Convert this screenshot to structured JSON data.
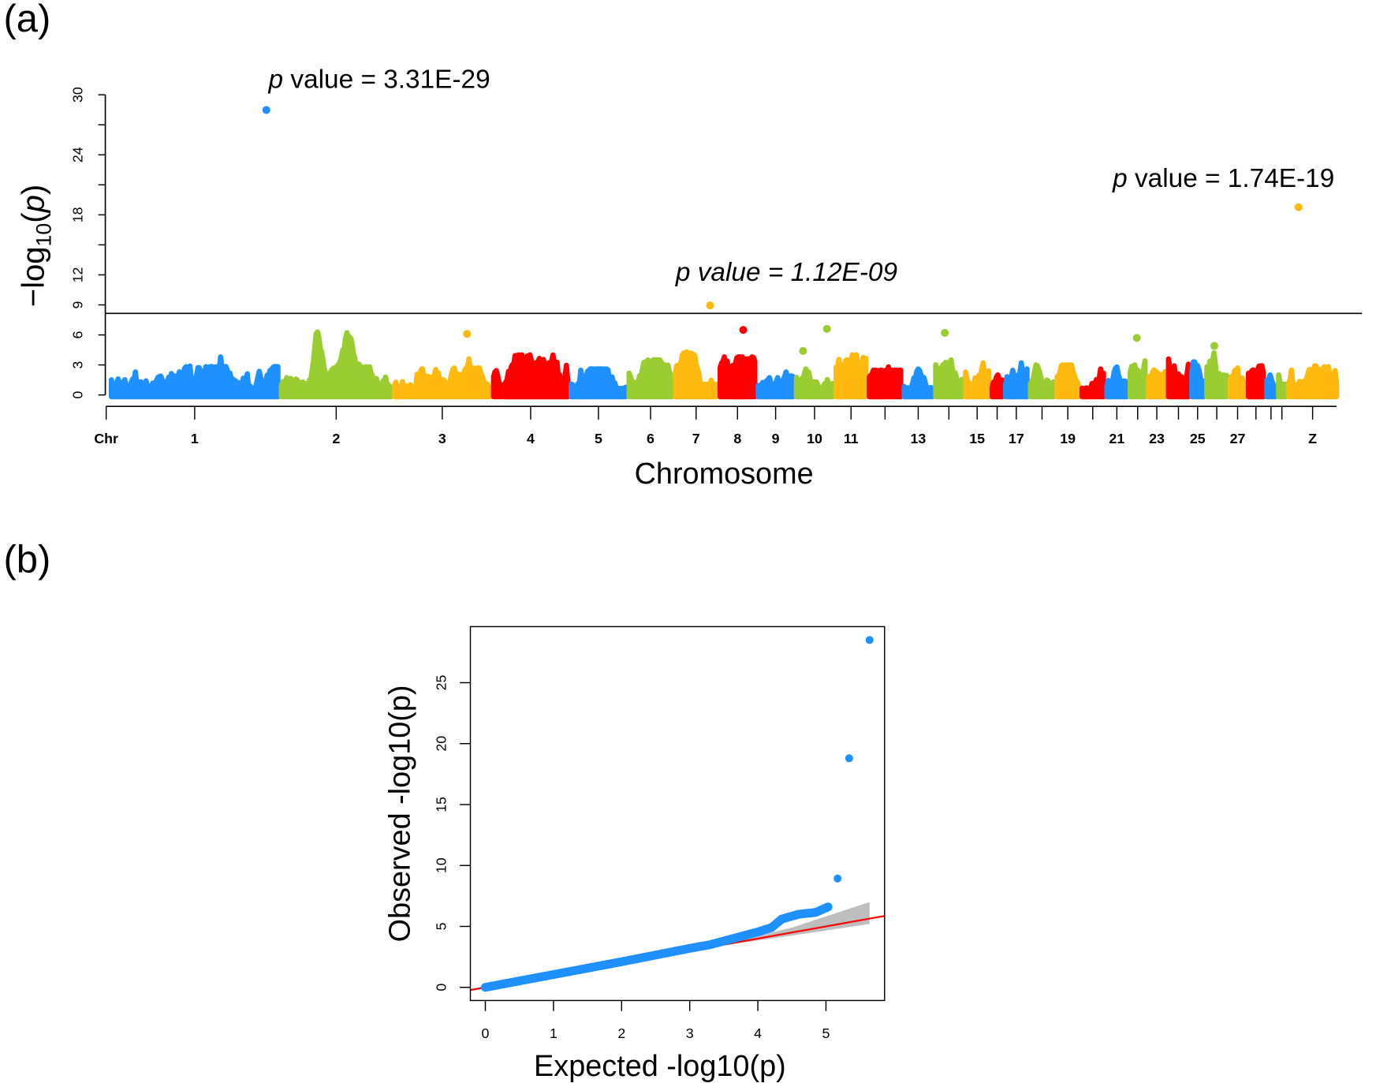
{
  "panel_labels": {
    "a": "(a)",
    "b": "(b)"
  },
  "chart_data": [
    {
      "type": "scatter",
      "subtype": "manhattan",
      "xlabel": "Chromosome",
      "ylabel_main": "−log",
      "ylabel_sub": "10",
      "ylabel_var": "p",
      "ylim": [
        0,
        30
      ],
      "yticks": [
        0,
        3,
        6,
        9,
        12,
        18,
        24,
        30
      ],
      "yticks_minor": [
        15,
        21,
        27
      ],
      "threshold": 8.15,
      "grid": false,
      "x_axis_start_label": "Chr",
      "colors": [
        "#1E90FF",
        "#9ACD32",
        "#FFB90F",
        "#FF0000"
      ],
      "chromosomes": [
        {
          "label": "1",
          "length_mb": 202,
          "peak": 3.8
        },
        {
          "label": "2",
          "length_mb": 133,
          "peak": 6.3
        },
        {
          "label": "3",
          "length_mb": 116,
          "peak": 3.6
        },
        {
          "label": "4",
          "length_mb": 90,
          "peak": 4.0
        },
        {
          "label": "5",
          "length_mb": 66,
          "peak": 2.6
        },
        {
          "label": "6",
          "length_mb": 52,
          "peak": 3.5
        },
        {
          "label": "7",
          "length_mb": 50,
          "peak": 4.3
        },
        {
          "label": "8",
          "length_mb": 42,
          "peak": 3.8
        },
        {
          "label": "9",
          "length_mb": 42,
          "peak": 2.3
        },
        {
          "label": "10",
          "length_mb": 44,
          "peak": 2.6
        },
        {
          "label": "11",
          "length_mb": 36,
          "peak": 4.0
        },
        {
          "label": "",
          "length_mb": 38,
          "peak": 2.8
        },
        {
          "label": "13",
          "length_mb": 34,
          "peak": 2.6
        },
        {
          "label": "",
          "length_mb": 32,
          "peak": 3.5
        },
        {
          "label": "15",
          "length_mb": 28,
          "peak": 3.2
        },
        {
          "label": "",
          "length_mb": 12,
          "peak": 2.0
        },
        {
          "label": "17",
          "length_mb": 26,
          "peak": 3.2
        },
        {
          "label": "",
          "length_mb": 28,
          "peak": 3.0
        },
        {
          "label": "19",
          "length_mb": 26,
          "peak": 3.0
        },
        {
          "label": "",
          "length_mb": 26,
          "peak": 2.6
        },
        {
          "label": "21",
          "length_mb": 24,
          "peak": 2.8
        },
        {
          "label": "",
          "length_mb": 18,
          "peak": 3.4
        },
        {
          "label": "23",
          "length_mb": 20,
          "peak": 2.5
        },
        {
          "label": "",
          "length_mb": 24,
          "peak": 3.6
        },
        {
          "label": "25",
          "length_mb": 14,
          "peak": 3.3
        },
        {
          "label": "",
          "length_mb": 24,
          "peak": 4.2
        },
        {
          "label": "27",
          "length_mb": 18,
          "peak": 2.7
        },
        {
          "label": "",
          "length_mb": 18,
          "peak": 2.9
        },
        {
          "label": "",
          "length_mb": 10,
          "peak": 2.0
        },
        {
          "label": "",
          "length_mb": 8,
          "peak": 2.0
        },
        {
          "label": "Z",
          "length_mb": 58,
          "peak": 2.9
        }
      ],
      "highlight_points": [
        {
          "chr": 0,
          "pos_mb": 188,
          "value": 28.48
        },
        {
          "chr": 30,
          "pos_mb": 12,
          "value": 18.76
        },
        {
          "chr": 6,
          "pos_mb": 42,
          "value": 8.95
        },
        {
          "chr": 2,
          "pos_mb": 88,
          "value": 6.1
        },
        {
          "chr": 7,
          "pos_mb": 28,
          "value": 6.5
        },
        {
          "chr": 9,
          "pos_mb": 8,
          "value": 4.4
        },
        {
          "chr": 9,
          "pos_mb": 37,
          "value": 6.6
        },
        {
          "chr": 13,
          "pos_mb": 11,
          "value": 6.2
        },
        {
          "chr": 21,
          "pos_mb": 8,
          "value": 5.7
        },
        {
          "chr": 25,
          "pos_mb": 9,
          "value": 4.9
        }
      ],
      "annotations": [
        {
          "prefix": "p",
          "text": " value = 3.31E-29",
          "italic": false
        },
        {
          "prefix": "p",
          "text": " value = 1.12E-09",
          "italic": true
        },
        {
          "prefix": "p",
          "text": " value = 1.74E-19",
          "italic": false
        }
      ]
    },
    {
      "type": "scatter",
      "subtype": "qq",
      "xlabel": "Expected -log10(p)",
      "ylabel": "Observed -log10(p)",
      "xlim": [
        -0.22,
        5.86
      ],
      "ylim": [
        -1.08,
        29.6
      ],
      "xticks": [
        "0",
        "1",
        "2",
        "3",
        "4",
        "5"
      ],
      "yticks": [
        "0",
        "5",
        "10",
        "15",
        "20",
        "25"
      ],
      "point_color": "#1E90FF",
      "reference_line_color": "#FF0000",
      "confidence_band_color": "#BEBEBE",
      "curve": [
        [
          0,
          0
        ],
        [
          1,
          1.05
        ],
        [
          2,
          2.1
        ],
        [
          2.5,
          2.65
        ],
        [
          3,
          3.2
        ],
        [
          3.3,
          3.5
        ],
        [
          3.6,
          3.95
        ],
        [
          4,
          4.55
        ],
        [
          4.2,
          4.9
        ],
        [
          4.35,
          5.6
        ],
        [
          4.6,
          6.0
        ],
        [
          4.85,
          6.15
        ],
        [
          5.03,
          6.6
        ]
      ],
      "outliers": [
        [
          5.17,
          8.93
        ],
        [
          5.34,
          18.8
        ],
        [
          5.64,
          28.5
        ]
      ],
      "band_upper": [
        [
          3.5,
          3.55
        ],
        [
          4.5,
          4.9
        ],
        [
          5.64,
          7.0
        ]
      ],
      "band_lower": [
        [
          3.5,
          3.45
        ],
        [
          4.5,
          4.25
        ],
        [
          5.64,
          5.2
        ]
      ]
    }
  ]
}
